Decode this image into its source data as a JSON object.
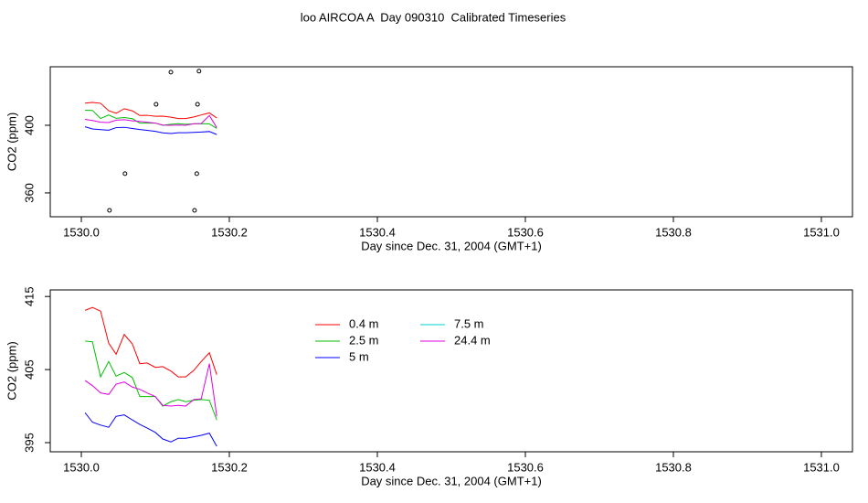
{
  "title": "loo AIRCOA A  Day 090310  Calibrated Timeseries",
  "chart_data": [
    {
      "type": "line",
      "xlabel": "Day since Dec. 31, 2004 (GMT+1)",
      "ylabel": "CO2 (ppm)",
      "xlim": [
        1529.958,
        1531.042
      ],
      "ylim": [
        345.9,
        434.6
      ],
      "xticks": [
        {
          "value": 1530,
          "label": "1530.0"
        },
        1530.2,
        1530.4,
        1530.6,
        1530.8,
        {
          "value": 1531,
          "label": "1531.0"
        }
      ],
      "yticks": [
        360,
        400
      ],
      "x": [
        1530.005,
        1530.015,
        1530.026,
        1530.037,
        1530.047,
        1530.058,
        1530.069,
        1530.079,
        1530.089,
        1530.1,
        1530.11,
        1530.121,
        1530.131,
        1530.141,
        1530.152,
        1530.162,
        1530.173,
        1530.183
      ],
      "series": [
        {
          "color": "#ff0000",
          "values": [
            413.1,
            413.5,
            413.0,
            408.6,
            407.1,
            409.8,
            408.5,
            405.8,
            405.9,
            405.3,
            405.4,
            404.8,
            404.0,
            404.0,
            404.9,
            406.1,
            407.3,
            404.3
          ]
        },
        {
          "color": "#00c000",
          "values": [
            408.9,
            408.8,
            404.0,
            406.1,
            404.1,
            404.6,
            403.9,
            401.3,
            401.3,
            401.3,
            400.0,
            400.6,
            400.9,
            400.6,
            400.8,
            400.9,
            400.8,
            398.1
          ]
        },
        {
          "color": "#0000ff",
          "values": [
            399.1,
            397.8,
            397.4,
            397.1,
            398.6,
            398.8,
            398.1,
            397.5,
            397.0,
            396.4,
            395.5,
            395.1,
            395.6,
            395.6,
            395.8,
            396.0,
            396.3,
            394.5
          ]
        },
        {
          "color": "#00d0d0",
          "values": [
            null,
            null,
            null,
            null,
            null,
            null,
            null,
            null,
            null,
            null,
            null,
            null,
            null,
            null,
            null,
            null,
            null,
            null
          ]
        },
        {
          "color": "#e000e0",
          "values": [
            403.5,
            402.8,
            401.8,
            401.6,
            403.0,
            403.3,
            402.6,
            402.3,
            401.8,
            401.3,
            400.1,
            400.0,
            400.1,
            400.0,
            400.9,
            401.0,
            405.8,
            398.6
          ]
        }
      ],
      "points": {
        "x": [
          1530.121,
          1530.159,
          1530.101,
          1530.157,
          1530.059,
          1530.156,
          1530.038,
          1530.153
        ],
        "y": [
          431.4,
          432.0,
          412.4,
          412.4,
          371.4,
          371.4,
          349.7,
          349.7
        ]
      }
    },
    {
      "type": "line",
      "xlabel": "Day since Dec. 31, 2004 (GMT+1)",
      "ylabel": "CO2 (ppm)",
      "xlim": [
        1529.958,
        1531.042
      ],
      "ylim": [
        393.75,
        415.9
      ],
      "xticks": [
        {
          "value": 1530,
          "label": "1530.0"
        },
        1530.2,
        1530.4,
        1530.6,
        1530.8,
        {
          "value": 1531,
          "label": "1531.0"
        }
      ],
      "yticks": [
        395,
        405,
        415
      ],
      "x": [
        1530.005,
        1530.015,
        1530.026,
        1530.037,
        1530.047,
        1530.058,
        1530.069,
        1530.079,
        1530.089,
        1530.1,
        1530.11,
        1530.121,
        1530.131,
        1530.141,
        1530.152,
        1530.162,
        1530.173,
        1530.183
      ],
      "series": [
        {
          "name": "0.4 m",
          "color": "#ff0000",
          "values": [
            413.1,
            413.5,
            413.0,
            408.6,
            407.1,
            409.8,
            408.5,
            405.8,
            405.9,
            405.3,
            405.4,
            404.8,
            404.0,
            404.0,
            404.9,
            406.1,
            407.3,
            404.3
          ]
        },
        {
          "name": "2.5 m",
          "color": "#00c000",
          "values": [
            408.9,
            408.8,
            404.0,
            406.1,
            404.1,
            404.6,
            403.9,
            401.3,
            401.3,
            401.3,
            400.0,
            400.6,
            400.9,
            400.6,
            400.8,
            400.9,
            400.8,
            398.1
          ]
        },
        {
          "name": "5 m",
          "color": "#0000ff",
          "values": [
            399.1,
            397.8,
            397.4,
            397.1,
            398.6,
            398.8,
            398.1,
            397.5,
            397.0,
            396.4,
            395.5,
            395.1,
            395.6,
            395.6,
            395.8,
            396.0,
            396.3,
            394.5
          ]
        },
        {
          "name": "7.5 m",
          "color": "#00d0d0",
          "values": [
            null,
            null,
            null,
            null,
            null,
            null,
            null,
            null,
            null,
            null,
            null,
            null,
            null,
            null,
            null,
            null,
            null,
            null
          ]
        },
        {
          "name": "24.4 m",
          "color": "#e000e0",
          "values": [
            403.5,
            402.8,
            401.8,
            401.6,
            403.0,
            403.3,
            402.6,
            402.3,
            401.8,
            401.3,
            400.1,
            400.0,
            400.1,
            400.0,
            400.9,
            401.0,
            405.8,
            398.6
          ]
        }
      ]
    }
  ]
}
